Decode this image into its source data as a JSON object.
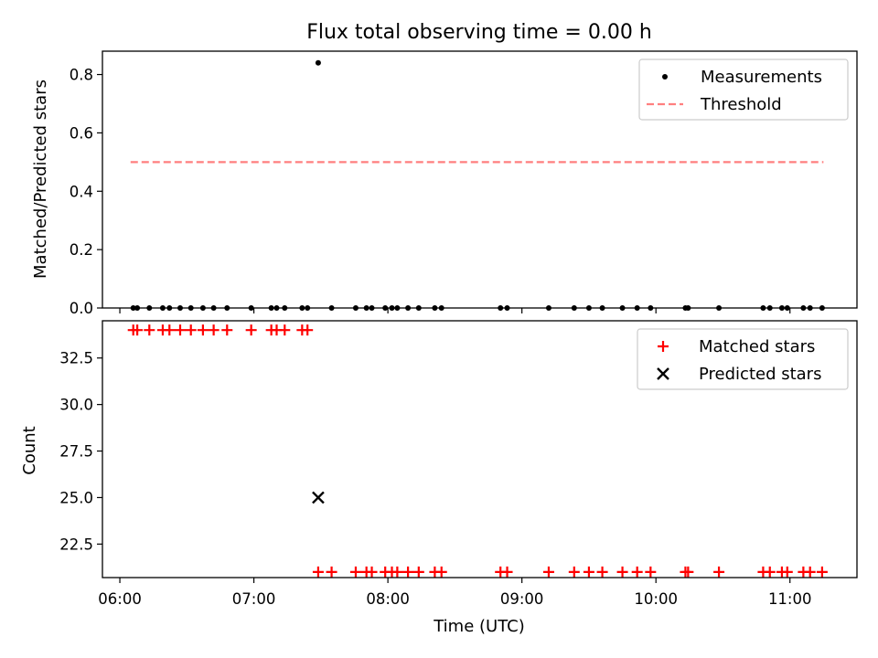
{
  "figure": {
    "title": "Flux total observing time = 0.00 h",
    "xlabel": "Time (UTC)",
    "xticks": [
      {
        "value": 6,
        "label": "06:00"
      },
      {
        "value": 7,
        "label": "07:00"
      },
      {
        "value": 8,
        "label": "08:00"
      },
      {
        "value": 9,
        "label": "09:00"
      },
      {
        "value": 10,
        "label": "10:00"
      },
      {
        "value": 11,
        "label": "11:00"
      }
    ],
    "xlim": [
      5.87,
      11.5
    ]
  },
  "chart_data": [
    {
      "type": "scatter",
      "ylabel": "Matched/Predicted stars",
      "ylim": [
        0,
        0.88
      ],
      "yticks": [
        "0.0",
        "0.2",
        "0.4",
        "0.6",
        "0.8"
      ],
      "legend_position": "top-right",
      "series": [
        {
          "name": "Measurements",
          "kind": "scatter",
          "marker": "dot",
          "color": "#000000",
          "x": [
            6.1,
            6.13,
            6.22,
            6.32,
            6.37,
            6.45,
            6.53,
            6.62,
            6.7,
            6.8,
            6.98,
            7.13,
            7.17,
            7.23,
            7.36,
            7.4,
            7.48,
            7.58,
            7.76,
            7.84,
            7.88,
            7.98,
            8.03,
            8.07,
            8.15,
            8.23,
            8.35,
            8.4,
            8.84,
            8.89,
            9.2,
            9.39,
            9.5,
            9.6,
            9.75,
            9.86,
            9.96,
            10.22,
            10.24,
            10.47,
            10.8,
            10.85,
            10.94,
            10.98,
            11.1,
            11.15,
            11.24
          ],
          "y": [
            0,
            0,
            0,
            0,
            0,
            0,
            0,
            0,
            0,
            0,
            0,
            0,
            0,
            0,
            0,
            0,
            0.84,
            0,
            0,
            0,
            0,
            0,
            0,
            0,
            0,
            0,
            0,
            0,
            0,
            0,
            0,
            0,
            0,
            0,
            0,
            0,
            0,
            0,
            0,
            0,
            0,
            0,
            0,
            0,
            0,
            0,
            0
          ]
        },
        {
          "name": "Threshold",
          "kind": "line",
          "style": "dashed",
          "color": "#ff7f7f",
          "x": [
            6.08,
            11.25
          ],
          "y": [
            0.5,
            0.5
          ]
        }
      ]
    },
    {
      "type": "scatter",
      "ylabel": "Count",
      "ylim": [
        20.7,
        34.5
      ],
      "yticks": [
        "22.5",
        "25.0",
        "27.5",
        "30.0",
        "32.5"
      ],
      "legend_position": "top-right",
      "series": [
        {
          "name": "Matched stars",
          "kind": "scatter",
          "marker": "plus",
          "color": "#ff0000",
          "x": [
            6.1,
            6.13,
            6.22,
            6.32,
            6.37,
            6.45,
            6.53,
            6.62,
            6.7,
            6.8,
            6.98,
            7.13,
            7.17,
            7.23,
            7.36,
            7.4,
            7.48,
            7.58,
            7.76,
            7.84,
            7.88,
            7.98,
            8.03,
            8.07,
            8.15,
            8.23,
            8.35,
            8.4,
            8.84,
            8.89,
            9.2,
            9.39,
            9.5,
            9.6,
            9.75,
            9.86,
            9.96,
            10.22,
            10.24,
            10.47,
            10.8,
            10.85,
            10.94,
            10.98,
            11.1,
            11.15,
            11.24
          ],
          "y": [
            34,
            34,
            34,
            34,
            34,
            34,
            34,
            34,
            34,
            34,
            34,
            34,
            34,
            34,
            34,
            34,
            21,
            21,
            21,
            21,
            21,
            21,
            21,
            21,
            21,
            21,
            21,
            21,
            21,
            21,
            21,
            21,
            21,
            21,
            21,
            21,
            21,
            21,
            21,
            21,
            21,
            21,
            21,
            21,
            21,
            21,
            21
          ]
        },
        {
          "name": "Predicted stars",
          "kind": "scatter",
          "marker": "x",
          "color": "#000000",
          "x": [
            7.48
          ],
          "y": [
            25
          ]
        }
      ]
    }
  ]
}
